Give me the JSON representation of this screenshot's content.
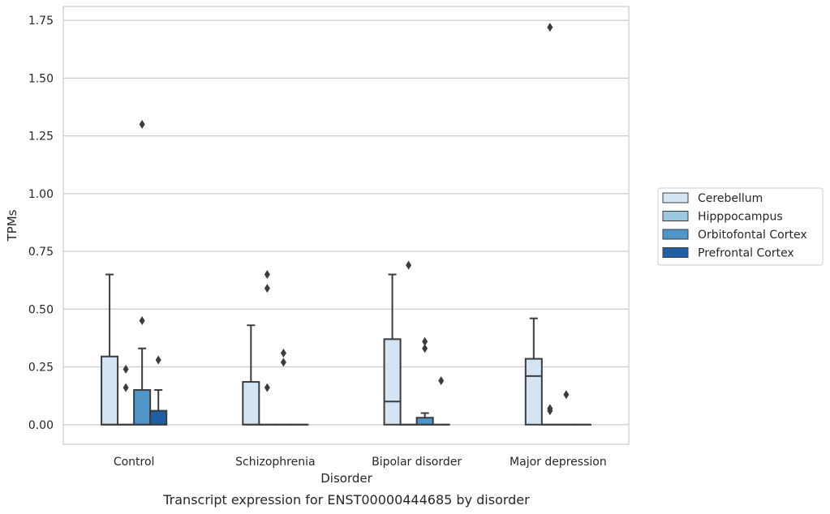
{
  "chart_data": {
    "type": "box",
    "caption": "Transcript expression for ENST00000444685 by disorder",
    "xlabel": "Disorder",
    "ylabel": "TPMs",
    "ylim": [
      -0.085,
      1.81
    ],
    "yticks": [
      "0.00",
      "0.25",
      "0.50",
      "0.75",
      "1.00",
      "1.25",
      "1.50",
      "1.75"
    ],
    "ytick_values": [
      0,
      0.25,
      0.5,
      0.75,
      1.0,
      1.25,
      1.5,
      1.75
    ],
    "grid": true,
    "legend_position": "right",
    "categories": [
      "Control",
      "Schizophrenia",
      "Bipolar disorder",
      "Major depression"
    ],
    "series": [
      {
        "name": "Cerebellum",
        "color": "#d3e4f3",
        "boxes": [
          {
            "q1": 0,
            "median": 0,
            "q3": 0.295,
            "whisker_low": 0,
            "whisker_high": 0.65,
            "outliers": []
          },
          {
            "q1": 0,
            "median": 0,
            "q3": 0.185,
            "whisker_low": 0,
            "whisker_high": 0.43,
            "outliers": []
          },
          {
            "q1": 0,
            "median": 0.1,
            "q3": 0.37,
            "whisker_low": 0,
            "whisker_high": 0.65,
            "outliers": []
          },
          {
            "q1": 0,
            "median": 0.21,
            "q3": 0.285,
            "whisker_low": 0,
            "whisker_high": 0.46,
            "outliers": []
          }
        ]
      },
      {
        "name": "Hipppocampus",
        "color": "#9ac8e0",
        "boxes": [
          {
            "q1": 0,
            "median": 0,
            "q3": 0,
            "whisker_low": 0,
            "whisker_high": 0,
            "outliers": [
              0.16,
              0.24
            ]
          },
          {
            "q1": 0,
            "median": 0,
            "q3": 0,
            "whisker_low": 0,
            "whisker_high": 0,
            "outliers": [
              0.16,
              0.59,
              0.65
            ]
          },
          {
            "q1": 0,
            "median": 0,
            "q3": 0,
            "whisker_low": 0,
            "whisker_high": 0,
            "outliers": [
              0.69
            ]
          },
          {
            "q1": 0,
            "median": 0,
            "q3": 0,
            "whisker_low": 0,
            "whisker_high": 0,
            "outliers": [
              0.06,
              0.07,
              1.72
            ]
          }
        ]
      },
      {
        "name": "Orbitofontal Cortex",
        "color": "#5096c9",
        "boxes": [
          {
            "q1": 0,
            "median": 0,
            "q3": 0.15,
            "whisker_low": 0,
            "whisker_high": 0.33,
            "outliers": [
              0.45,
              1.3
            ]
          },
          {
            "q1": 0,
            "median": 0,
            "q3": 0,
            "whisker_low": 0,
            "whisker_high": 0,
            "outliers": [
              0.27,
              0.31
            ]
          },
          {
            "q1": 0,
            "median": 0,
            "q3": 0.03,
            "whisker_low": 0,
            "whisker_high": 0.05,
            "outliers": [
              0.33,
              0.36
            ]
          },
          {
            "q1": 0,
            "median": 0,
            "q3": 0,
            "whisker_low": 0,
            "whisker_high": 0,
            "outliers": [
              0.13
            ]
          }
        ]
      },
      {
        "name": "Prefrontal Cortex",
        "color": "#1f5fa3",
        "boxes": [
          {
            "q1": 0,
            "median": 0,
            "q3": 0.06,
            "whisker_low": 0,
            "whisker_high": 0.15,
            "outliers": [
              0.28
            ]
          },
          {
            "q1": 0,
            "median": 0,
            "q3": 0,
            "whisker_low": 0,
            "whisker_high": 0,
            "outliers": []
          },
          {
            "q1": 0,
            "median": 0,
            "q3": 0,
            "whisker_low": 0,
            "whisker_high": 0,
            "outliers": [
              0.19
            ]
          },
          {
            "q1": 0,
            "median": 0,
            "q3": 0,
            "whisker_low": 0,
            "whisker_high": 0,
            "outliers": []
          }
        ]
      }
    ]
  }
}
